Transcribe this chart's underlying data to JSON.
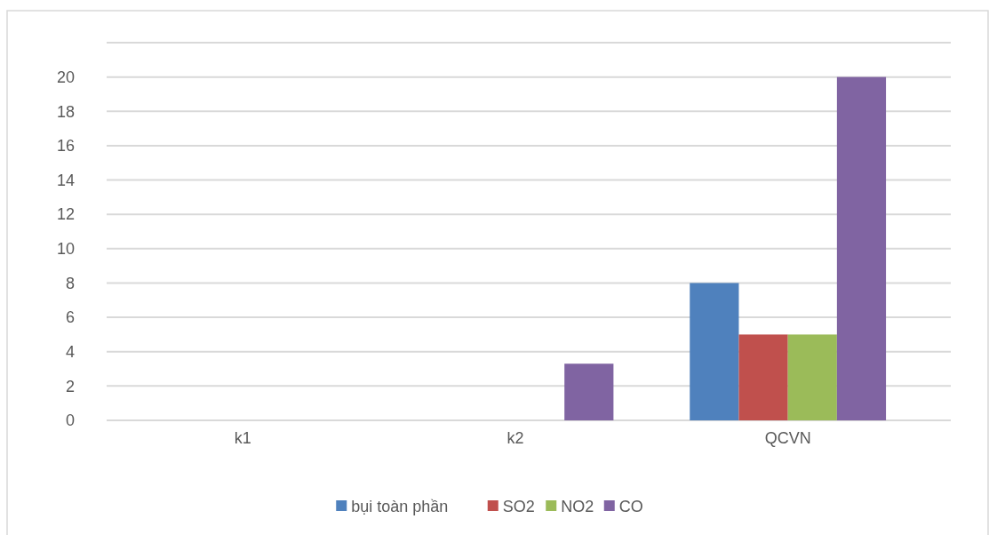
{
  "chart_data": {
    "type": "bar",
    "categories": [
      "k1",
      "k2",
      "QCVN"
    ],
    "series": [
      {
        "name": "bụi toàn phần",
        "color": "#4f81bd",
        "values": [
          0,
          0,
          8
        ]
      },
      {
        "name": "SO2",
        "color": "#c0504d",
        "values": [
          0,
          0,
          5
        ]
      },
      {
        "name": "NO2",
        "color": "#9bbb59",
        "values": [
          0,
          0,
          5
        ]
      },
      {
        "name": "CO",
        "color": "#8064a2",
        "values": [
          0,
          3.3,
          20
        ]
      }
    ],
    "ylim": [
      0,
      22
    ],
    "yticks": [
      0,
      2,
      4,
      6,
      8,
      10,
      12,
      14,
      16,
      18,
      20,
      {
        "value": 22,
        "label": null
      }
    ],
    "grid": "y",
    "legend": "bottom"
  }
}
